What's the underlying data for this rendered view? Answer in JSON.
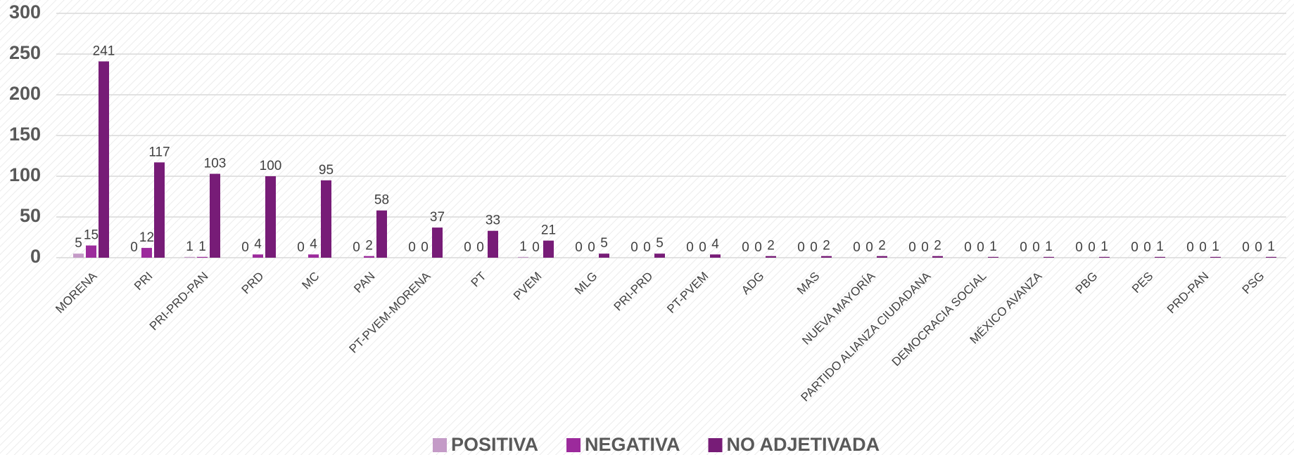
{
  "chart_data": {
    "type": "bar",
    "categories": [
      "MORENA",
      "PRI",
      "PRI-PRD-PAN",
      "PRD",
      "MC",
      "PAN",
      "PT-PVEM-MORENA",
      "PT",
      "PVEM",
      "MLG",
      "PRI-PRD",
      "PT-PVEM",
      "ADG",
      "MAS",
      "NUEVA MAYORÍA",
      "PARTIDO ALIANZA CIUDADANA",
      "DEMOCRACIA SOCIAL",
      "MÉXICO AVANZA",
      "PBG",
      "PES",
      "PRD-PAN",
      "PSG"
    ],
    "series": [
      {
        "name": "POSITIVA",
        "color": "#c49bc7",
        "values": [
          5,
          0,
          1,
          0,
          0,
          0,
          0,
          0,
          1,
          0,
          0,
          0,
          0,
          0,
          0,
          0,
          0,
          0,
          0,
          0,
          0,
          0
        ]
      },
      {
        "name": "NEGATIVA",
        "color": "#9c2a9c",
        "values": [
          15,
          12,
          1,
          4,
          4,
          2,
          0,
          0,
          0,
          0,
          0,
          0,
          0,
          0,
          0,
          0,
          0,
          0,
          0,
          0,
          0,
          0
        ]
      },
      {
        "name": "NO ADJETIVADA",
        "color": "#771c77",
        "values": [
          241,
          117,
          103,
          100,
          95,
          58,
          37,
          33,
          21,
          5,
          5,
          4,
          2,
          2,
          2,
          2,
          1,
          1,
          1,
          1,
          1,
          1
        ]
      }
    ],
    "ylim": [
      0,
      300
    ],
    "yticks": [
      0,
      50,
      100,
      150,
      200,
      250,
      300
    ],
    "grid": true,
    "legend": "bottom"
  }
}
